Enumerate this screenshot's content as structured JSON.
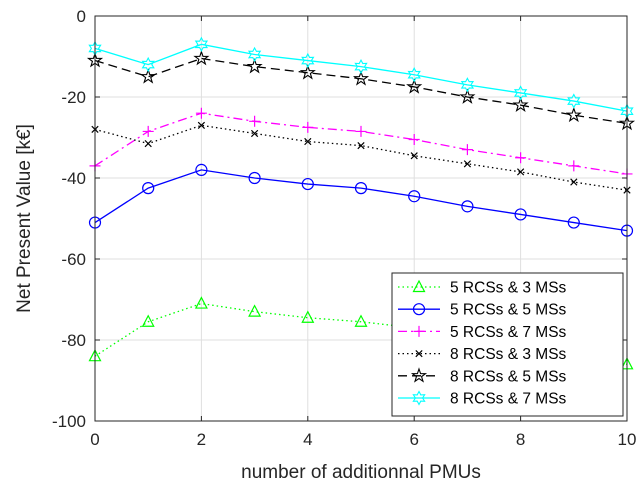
{
  "chart_data": {
    "type": "line",
    "title": "",
    "xlabel": "number of additionnal PMUs",
    "ylabel": "Net Present Value [k€]",
    "xlim": [
      0,
      10
    ],
    "ylim": [
      -100,
      0
    ],
    "xticks": [
      0,
      2,
      4,
      6,
      8,
      10
    ],
    "yticks": [
      0,
      -20,
      -40,
      -60,
      -80,
      -100
    ],
    "grid": true,
    "legend_location": "bottom-right",
    "x": [
      0,
      1,
      2,
      3,
      4,
      5,
      6,
      7,
      8,
      9,
      10
    ],
    "series": [
      {
        "name": "5 RCSs & 3 MSs",
        "color": "#00ff00",
        "line_style": "dotted",
        "marker": "triangle",
        "values": [
          -84,
          -75.5,
          -71,
          -73,
          -74.5,
          -75.5,
          -77,
          -78.5,
          -80.5,
          -83.5,
          -86
        ]
      },
      {
        "name": "5 RCSs & 5 MSs",
        "color": "#0000ff",
        "line_style": "solid",
        "marker": "circle",
        "values": [
          -51,
          -42.5,
          -38,
          -40,
          -41.5,
          -42.5,
          -44.5,
          -47,
          -49,
          -51,
          -53
        ]
      },
      {
        "name": "5 RCSs & 7 MSs",
        "color": "#ff00ff",
        "line_style": "dashdot",
        "marker": "plus",
        "values": [
          -37,
          -28.5,
          -24,
          -26,
          -27.5,
          -28.5,
          -30.5,
          -33,
          -35,
          -37,
          -39
        ]
      },
      {
        "name": "8 RCSs & 3 MSs",
        "color": "#000000",
        "line_style": "dotted",
        "marker": "x",
        "values": [
          -28,
          -31.5,
          -27,
          -29,
          -31,
          -32,
          -34.5,
          -36.5,
          -38.5,
          -41,
          -43
        ]
      },
      {
        "name": "8 RCSs & 5 MSs",
        "color": "#000000",
        "line_style": "dashed",
        "marker": "pentagram",
        "values": [
          -11,
          -15,
          -10.5,
          -12.5,
          -14,
          -15.5,
          -17.5,
          -20,
          -22,
          -24.5,
          -26.5
        ]
      },
      {
        "name": "8 RCSs & 7 MSs",
        "color": "#00ffff",
        "line_style": "solid",
        "marker": "hexagram",
        "values": [
          -8,
          -12,
          -7,
          -9.5,
          -11,
          -12.5,
          -14.5,
          -17,
          -19,
          -21,
          -23.5
        ]
      }
    ]
  }
}
